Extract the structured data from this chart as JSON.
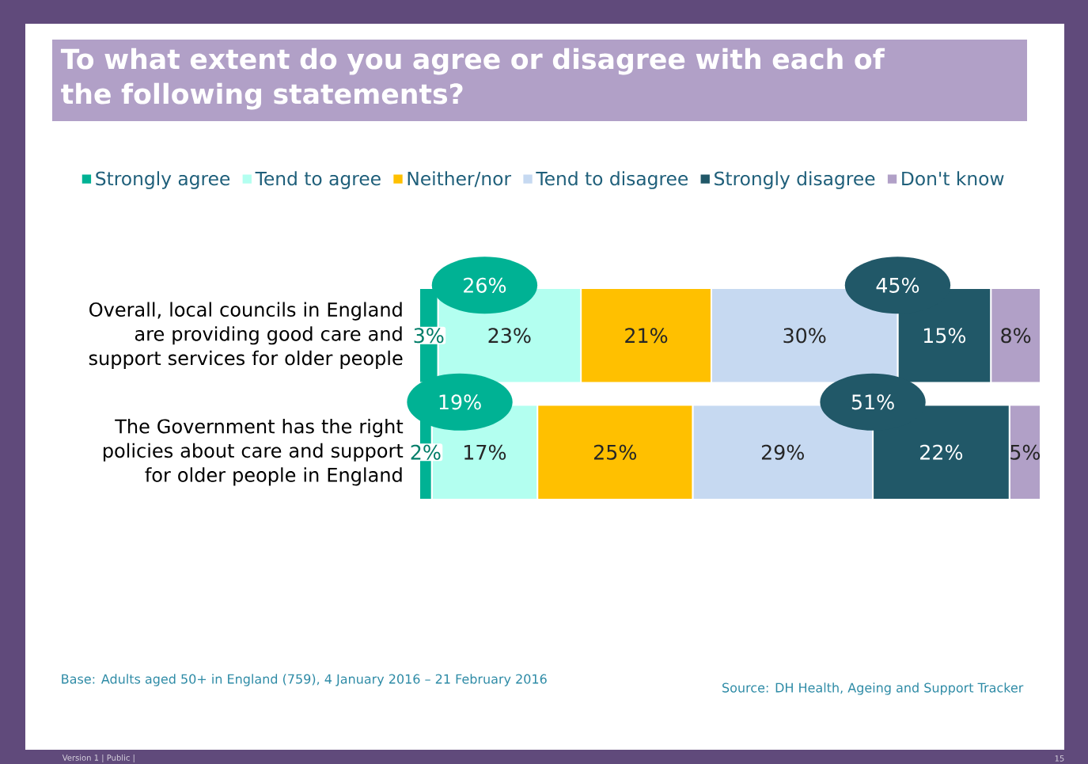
{
  "chart_data": {
    "type": "bar",
    "orientation": "horizontal",
    "stacked": true,
    "title": "To what extent do you agree or disagree with each of the following statements?",
    "categories": [
      "Overall, local councils in England are providing good care and support services for older people",
      "The Government has the right policies about care and support for older people in England"
    ],
    "series": [
      {
        "name": "Strongly agree",
        "color": "#00b294",
        "values": [
          3,
          2
        ],
        "value_labels": [
          "3%",
          "2%"
        ]
      },
      {
        "name": "Tend to agree",
        "color": "#b3fff0",
        "values": [
          23,
          17
        ],
        "value_labels": [
          "23%",
          "17%"
        ]
      },
      {
        "name": "Neither/nor",
        "color": "#ffc000",
        "values": [
          21,
          25
        ],
        "value_labels": [
          "21%",
          "25%"
        ]
      },
      {
        "name": "Tend to disagree",
        "color": "#c6d9f1",
        "values": [
          30,
          29
        ],
        "value_labels": [
          "30%",
          "29%"
        ]
      },
      {
        "name": "Strongly disagree",
        "color": "#215868",
        "values": [
          15,
          22
        ],
        "value_labels": [
          "15%",
          "22%"
        ]
      },
      {
        "name": "Don't know",
        "color": "#b1a0c7",
        "values": [
          8,
          5
        ],
        "value_labels": [
          "8%",
          "5%"
        ]
      }
    ],
    "legend": "top",
    "annotations": [
      "26%",
      "45%",
      "19%",
      "51%",
      "Base: Adults aged 50+ in England (759), 4 January 2016 – 21 February 2016",
      "Source: DH Health, Ageing and Support Tracker",
      "Version 1  |  Public |",
      "15"
    ]
  }
}
